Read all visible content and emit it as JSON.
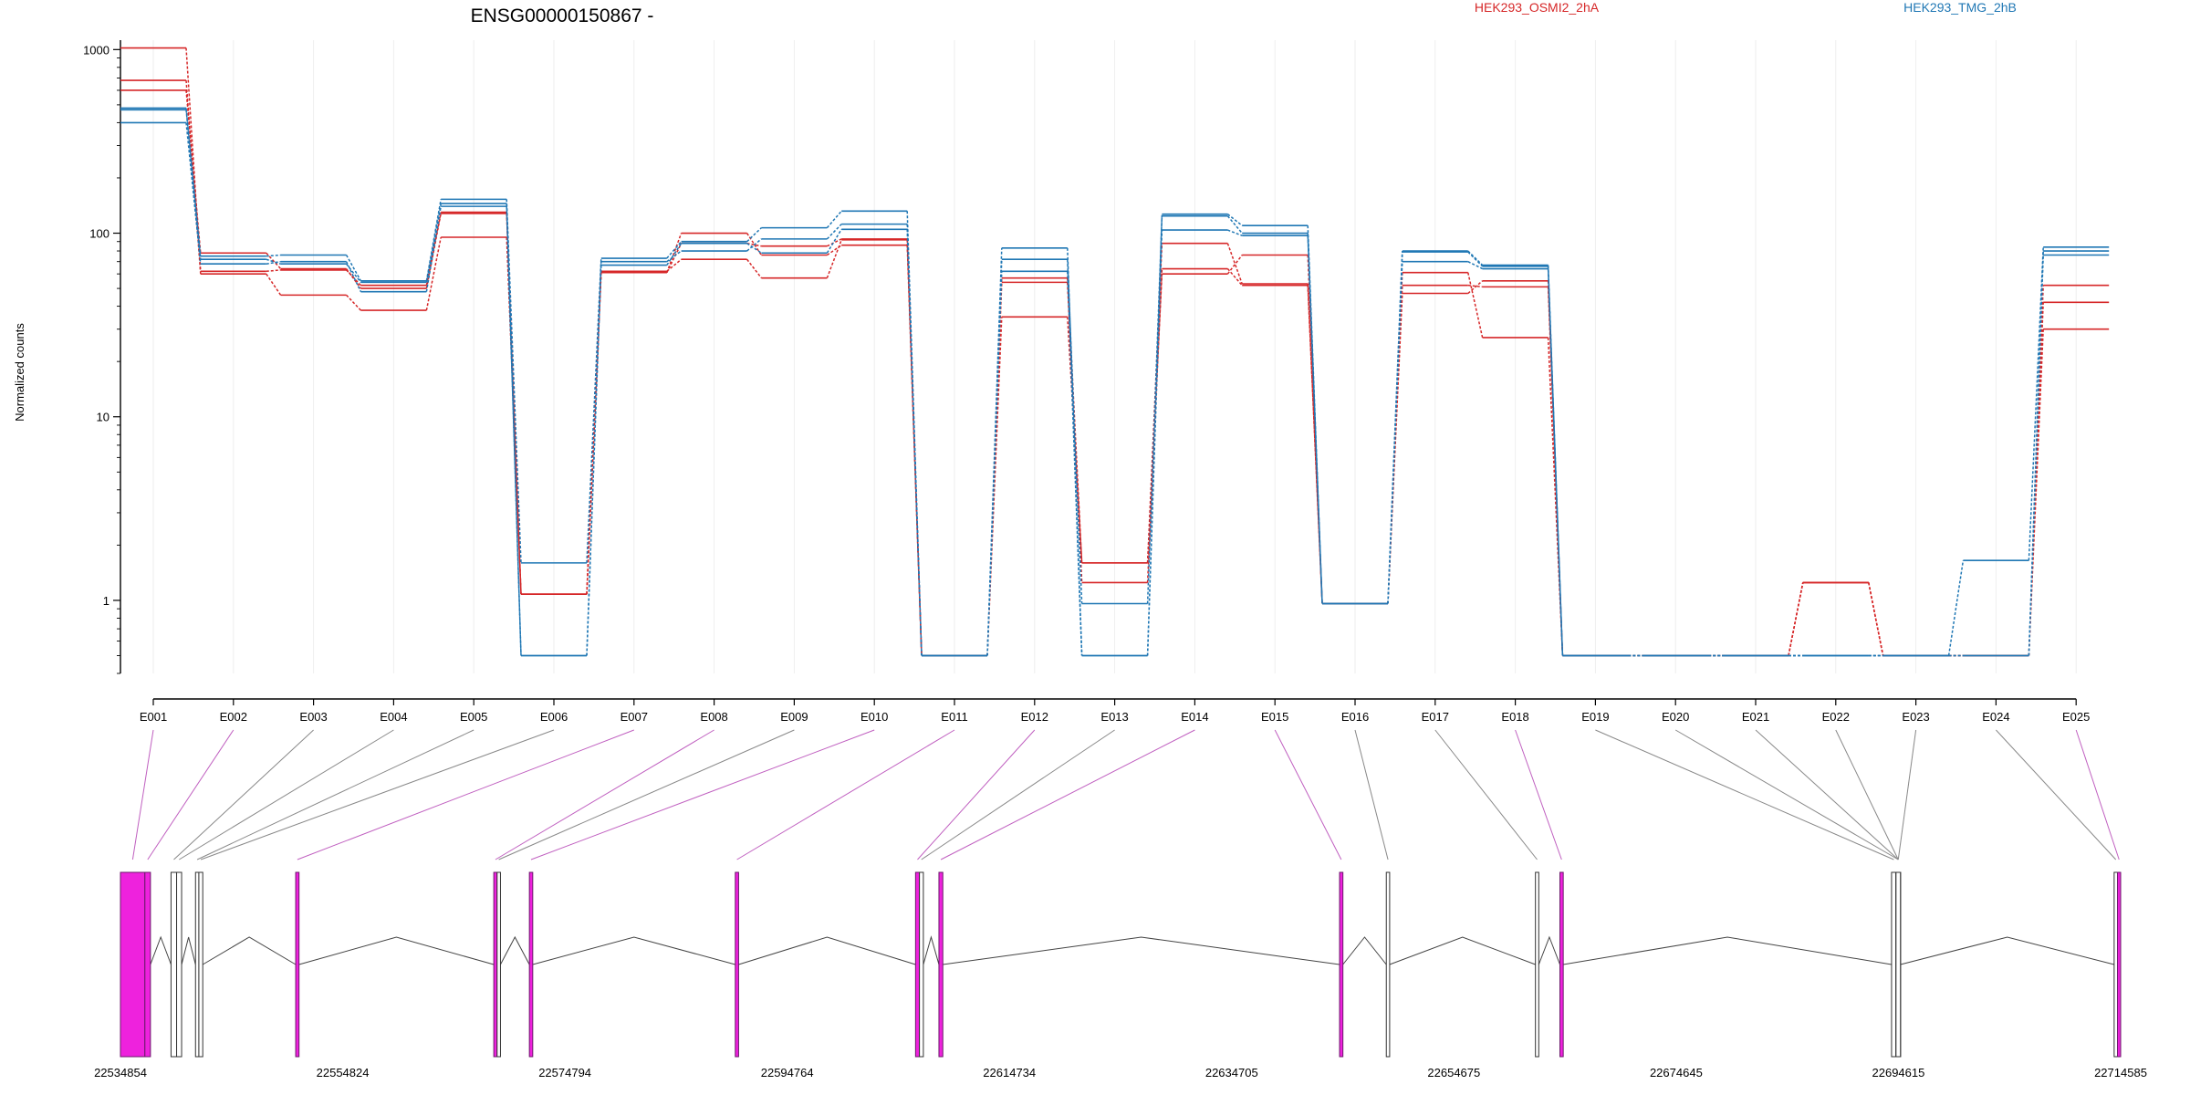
{
  "chart_data": {
    "type": "line",
    "title": "ENSG00000150867 -",
    "ylabel": "Normalized counts",
    "xlabel": "",
    "yscale": "log",
    "ylim": [
      0.4,
      1100
    ],
    "yticks": [
      1,
      10,
      100,
      1000
    ],
    "ytick_labels": [
      "1",
      "10",
      "100",
      "1000"
    ],
    "grid": "vertical",
    "legend_placement": "top",
    "categories": [
      "E001",
      "E002",
      "E003",
      "E004",
      "E005",
      "E006",
      "E007",
      "E008",
      "E009",
      "E010",
      "E011",
      "E012",
      "E013",
      "E014",
      "E015",
      "E016",
      "E017",
      "E018",
      "E019",
      "E020",
      "E021",
      "E022",
      "E023",
      "E024",
      "E025"
    ],
    "series": [
      {
        "group": "HEK293_OSMI2_2hA",
        "color": "#d62728",
        "values": [
          1020,
          62,
          63,
          52,
          130,
          1.08,
          61,
          88,
          85,
          93,
          0.5,
          57,
          1.6,
          88,
          53,
          0.96,
          52,
          51,
          0.5,
          0.5,
          0.5,
          1.25,
          0.5,
          0.5,
          52
        ]
      },
      {
        "group": "HEK293_OSMI2_2hA",
        "color": "#d62728",
        "values": [
          680,
          60,
          46,
          38,
          95,
          1.08,
          62,
          72,
          57,
          92,
          0.5,
          54,
          1.25,
          64,
          52,
          0.96,
          47,
          55,
          0.5,
          0.5,
          0.5,
          1.25,
          0.5,
          0.5,
          42
        ]
      },
      {
        "group": "HEK293_OSMI2_2hA",
        "color": "#d62728",
        "values": [
          600,
          78,
          64,
          50,
          128,
          1.08,
          61,
          100,
          76,
          86,
          0.5,
          35,
          1.6,
          60,
          76,
          0.96,
          61,
          27,
          0.5,
          0.5,
          0.5,
          1.25,
          0.5,
          0.5,
          30
        ]
      },
      {
        "group": "HEK293_TMG_2hB",
        "color": "#1f77b4",
        "values": [
          470,
          75,
          76,
          55,
          153,
          1.6,
          73,
          90,
          107,
          132,
          0.5,
          83,
          0.5,
          127,
          110,
          0.96,
          80,
          67,
          0.5,
          0.5,
          0.5,
          0.5,
          0.5,
          1.65,
          84
        ]
      },
      {
        "group": "HEK293_TMG_2hB",
        "color": "#1f77b4",
        "values": [
          480,
          72,
          68,
          54,
          145,
          0.5,
          70,
          80,
          93,
          112,
          0.5,
          72,
          0.96,
          124,
          100,
          0.96,
          79,
          66,
          0.5,
          0.5,
          0.5,
          0.5,
          0.5,
          0.5,
          80
        ]
      },
      {
        "group": "HEK293_TMG_2hB",
        "color": "#1f77b4",
        "values": [
          400,
          68,
          70,
          48,
          140,
          0.5,
          67,
          88,
          78,
          105,
          0.5,
          62,
          0.5,
          104,
          97,
          0.96,
          70,
          64,
          0.5,
          0.5,
          0.5,
          0.5,
          0.5,
          0.5,
          76
        ]
      }
    ],
    "legend": [
      {
        "label": "HEK293_OSMI2_2hA",
        "color": "#d62728"
      },
      {
        "label": "HEK293_TMG_2hB",
        "color": "#1f77b4"
      }
    ],
    "genomic_axis": {
      "range": [
        22534854,
        22714585
      ],
      "tick_labels": [
        "22534854",
        "22554824",
        "22574794",
        "22594764",
        "22614734",
        "22634705",
        "22654675",
        "22674645",
        "22694615",
        "22714585"
      ]
    },
    "exon_highlight_color": "#ee22dd",
    "connector_colors": {
      "highlighted": "#c060c0",
      "normal": "#888888"
    }
  }
}
